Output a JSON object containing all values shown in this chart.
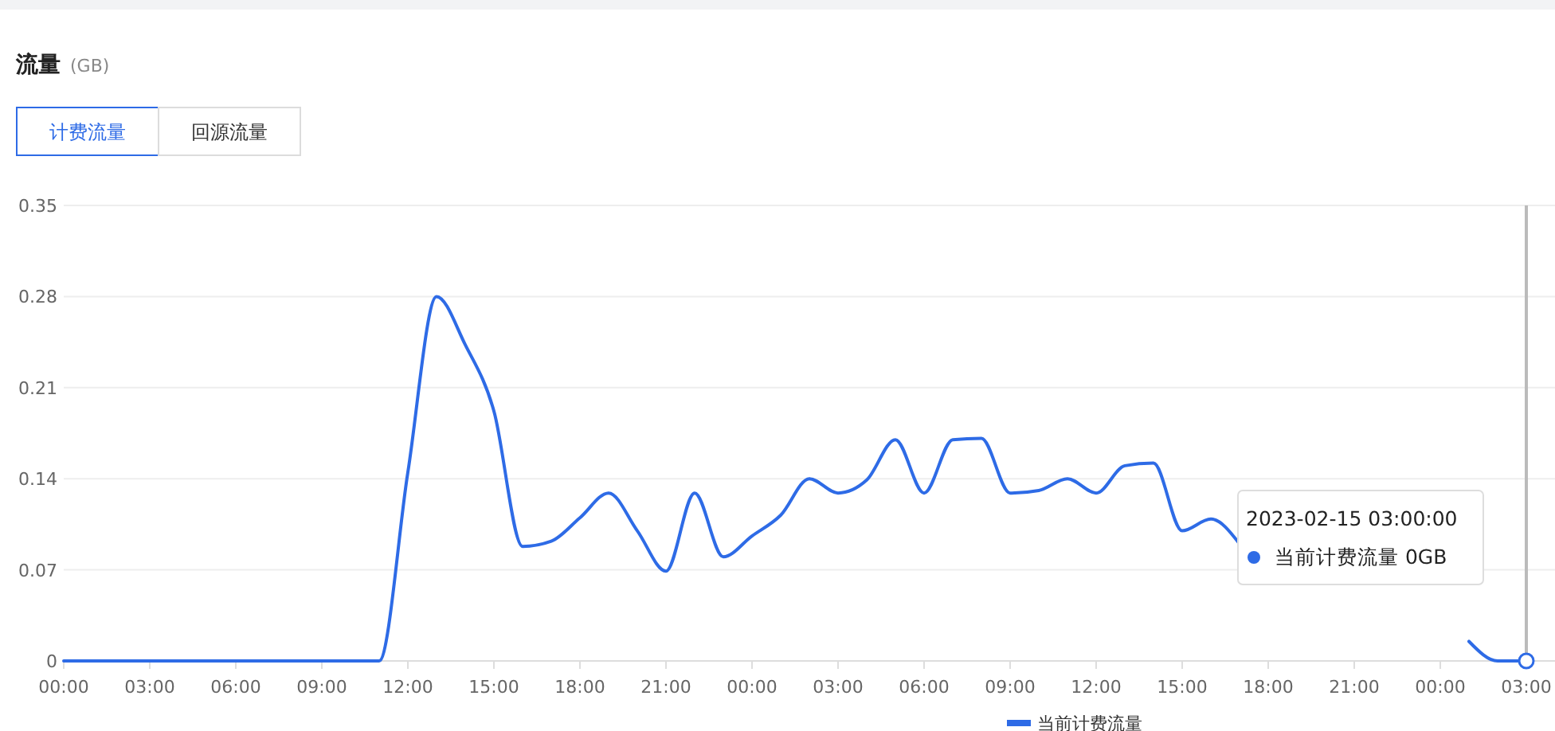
{
  "chart_data": {
    "type": "line",
    "title": "流量",
    "subtitle": "(GB)",
    "annotations": [
      "计费流量",
      "回源流量",
      "2023-02-15 03:00:00\n当前计费流量 0GB"
    ],
    "x": [
      "2023-02-13T00:00",
      "2023-02-13T01:00",
      "2023-02-13T02:00",
      "2023-02-13T03:00",
      "2023-02-13T04:00",
      "2023-02-13T05:00",
      "2023-02-13T06:00",
      "2023-02-13T07:00",
      "2023-02-13T08:00",
      "2023-02-13T09:00",
      "2023-02-13T10:00",
      "2023-02-13T11:00",
      "2023-02-13T12:00",
      "2023-02-13T13:00",
      "2023-02-13T14:00",
      "2023-02-13T15:00",
      "2023-02-13T16:00",
      "2023-02-13T17:00",
      "2023-02-13T18:00",
      "2023-02-13T19:00",
      "2023-02-13T20:00",
      "2023-02-13T21:00",
      "2023-02-13T22:00",
      "2023-02-13T23:00",
      "2023-02-14T00:00",
      "2023-02-14T01:00",
      "2023-02-14T02:00",
      "2023-02-14T03:00",
      "2023-02-14T04:00",
      "2023-02-14T05:00",
      "2023-02-14T06:00",
      "2023-02-14T07:00",
      "2023-02-14T08:00",
      "2023-02-14T09:00",
      "2023-02-14T10:00",
      "2023-02-14T11:00",
      "2023-02-14T12:00",
      "2023-02-14T13:00",
      "2023-02-14T14:00",
      "2023-02-14T15:00",
      "2023-02-14T16:00",
      "2023-02-14T17:00",
      "2023-02-14T18:00",
      "2023-02-14T19:00",
      "2023-02-14T20:00",
      "2023-02-14T21:00",
      "2023-02-14T22:00",
      "2023-02-14T23:00",
      "2023-02-15T00:00",
      "2023-02-15T01:00",
      "2023-02-15T02:00",
      "2023-02-15T03:00"
    ],
    "series": [
      {
        "name": "当前计费流量",
        "color": "#2e6be6",
        "values": [
          0,
          0,
          0,
          0,
          0,
          0,
          0,
          0,
          0,
          0,
          0,
          0,
          0.145,
          0.28,
          0.243,
          0.192,
          0.088,
          0.092,
          0.11,
          0.129,
          0.1,
          0.069,
          0.129,
          0.08,
          0.096,
          0.112,
          0.14,
          0.129,
          0.139,
          0.17,
          0.129,
          0.17,
          0.171,
          0.129,
          0.131,
          0.14,
          0.129,
          0.15,
          0.152,
          0.1,
          0.109,
          0.09,
          null,
          null,
          null,
          null,
          null,
          null,
          null,
          0.015,
          0,
          0
        ]
      }
    ],
    "xlim": [
      "2023-02-13T00:00",
      "2023-02-15T03:00"
    ],
    "xticks": [
      {
        "value": "2023-02-13T00:00",
        "label": "00:00"
      },
      {
        "value": "2023-02-13T03:00",
        "label": "03:00"
      },
      {
        "value": "2023-02-13T06:00",
        "label": "06:00"
      },
      {
        "value": "2023-02-13T09:00",
        "label": "09:00"
      },
      {
        "value": "2023-02-13T12:00",
        "label": "12:00"
      },
      {
        "value": "2023-02-13T15:00",
        "label": "15:00"
      },
      {
        "value": "2023-02-13T18:00",
        "label": "18:00"
      },
      {
        "value": "2023-02-13T21:00",
        "label": "21:00"
      },
      {
        "value": "2023-02-14T00:00",
        "label": "00:00"
      },
      {
        "value": "2023-02-14T03:00",
        "label": "03:00"
      },
      {
        "value": "2023-02-14T06:00",
        "label": "06:00"
      },
      {
        "value": "2023-02-14T09:00",
        "label": "09:00"
      },
      {
        "value": "2023-02-14T12:00",
        "label": "12:00"
      },
      {
        "value": "2023-02-14T15:00",
        "label": "15:00"
      },
      {
        "value": "2023-02-14T18:00",
        "label": "18:00"
      },
      {
        "value": "2023-02-14T21:00",
        "label": "21:00"
      },
      {
        "value": "2023-02-15T00:00",
        "label": "00:00"
      },
      {
        "value": "2023-02-15T03:00",
        "label": "03:00"
      }
    ],
    "ylim": [
      0,
      0.35
    ],
    "yticks": [
      0,
      0.07,
      0.14,
      0.21,
      0.28,
      0.35
    ],
    "ref_lines": [
      {
        "axis": "x",
        "value": "2023-02-15T03:00",
        "color": "#bbbbbb"
      }
    ],
    "grid": "y",
    "legend": "bottom"
  }
}
